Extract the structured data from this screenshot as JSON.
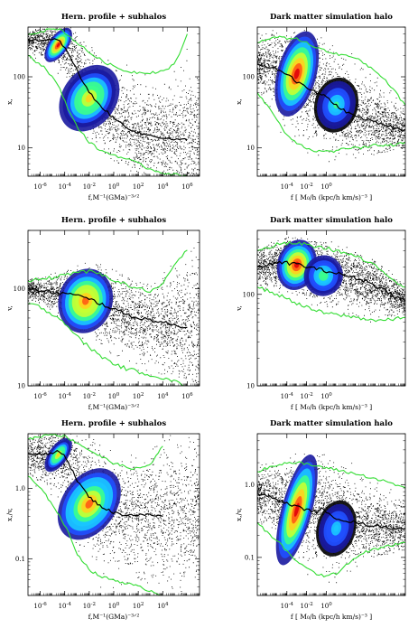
{
  "colors": {
    "envelope": "#33dd33",
    "median": "#000000",
    "density_scale": [
      "#000000",
      "#1a1aa0",
      "#2050ff",
      "#19c8ff",
      "#3cff8c",
      "#c8ff32",
      "#ffd21e",
      "#ff5a14",
      "#e1000a"
    ]
  },
  "chart_data": [
    {
      "type": "scatter",
      "title": "Hern. profile + subhalos",
      "xlabel": "f,M⁻¹(GMa)⁻³ᐟ²",
      "ylabel": "x,",
      "xscale": "log",
      "yscale": "log",
      "xlim": [
        1e-07,
        10000000.0
      ],
      "ylim": [
        4,
        500
      ],
      "xticks": [
        {
          "v": 1e-06,
          "e": "-6"
        },
        {
          "v": 0.0001,
          "e": "-4"
        },
        {
          "v": 0.01,
          "e": "-2"
        },
        {
          "v": 1,
          "e": "0"
        },
        {
          "v": 100,
          "e": "2"
        },
        {
          "v": 10000.0,
          "e": "4"
        },
        {
          "v": 1000000.0,
          "e": "6"
        }
      ],
      "yticks": [
        {
          "v": 10,
          "label": "10"
        },
        {
          "v": 100,
          "label": "100"
        }
      ],
      "median_line": {
        "x": [
          1e-07,
          3e-06,
          1e-05,
          3e-05,
          0.0001,
          0.0003,
          0.001,
          0.003,
          0.01,
          0.1,
          1,
          10,
          100,
          1000,
          10000.0,
          100000.0,
          1000000.0
        ],
        "y": [
          340,
          320,
          330,
          330,
          260,
          180,
          125,
          85,
          60,
          38,
          26,
          20,
          16,
          15,
          14,
          13,
          13
        ]
      },
      "envelope_upper": {
        "x": [
          1e-07,
          3e-06,
          3e-05,
          0.0001,
          0.0003,
          0.001,
          0.01,
          0.1,
          1,
          10,
          100,
          1000,
          10000.0,
          100000.0,
          1000000.0
        ],
        "y": [
          400,
          450,
          480,
          420,
          360,
          300,
          220,
          170,
          140,
          120,
          115,
          115,
          120,
          150,
          400
        ]
      },
      "envelope_lower": {
        "x": [
          1e-07,
          3e-06,
          3e-05,
          0.0001,
          0.001,
          0.01,
          0.1,
          1,
          10,
          100,
          1000,
          10000.0,
          100000.0,
          1000000.0
        ],
        "y": [
          200,
          130,
          75,
          45,
          20,
          12,
          9,
          8,
          7,
          6,
          5,
          4.5,
          4.2,
          4
        ]
      },
      "density_peaks": [
        {
          "x": 3e-05,
          "y": 280,
          "w": 0.35,
          "h": 0.1,
          "level": 0.95
        },
        {
          "x": 0.01,
          "y": 50,
          "w": 1.0,
          "h": 0.18,
          "level": 0.7
        }
      ]
    },
    {
      "type": "scatter",
      "title": "Dark matter simulation halo",
      "xlabel": "f [ M₀/h (kpc/h km/s)⁻³ ]",
      "ylabel": "x,",
      "xscale": "log",
      "yscale": "log",
      "xlim": [
        1e-07,
        100000000.0
      ],
      "ylim": [
        4,
        500
      ],
      "xticks": [
        {
          "v": 0.0001,
          "e": "-4"
        },
        {
          "v": 0.01,
          "e": "-2"
        },
        {
          "v": 1,
          "e": "0"
        }
      ],
      "yticks": [
        {
          "v": 10,
          "label": "10"
        },
        {
          "v": 100,
          "label": "100"
        }
      ],
      "median_line": {
        "x": [
          1e-07,
          1e-06,
          1e-05,
          0.0001,
          0.001,
          0.01,
          0.1,
          1,
          10,
          100,
          1000,
          10000.0,
          100000.0,
          1000000.0,
          10000000.0,
          100000000.0
        ],
        "y": [
          150,
          140,
          130,
          110,
          85,
          70,
          60,
          52,
          40,
          32,
          28,
          25,
          23,
          21,
          19,
          18
        ]
      },
      "envelope_upper": {
        "x": [
          1e-07,
          1e-06,
          1e-05,
          0.0001,
          0.001,
          0.01,
          0.1,
          1,
          10,
          100,
          1000,
          10000.0,
          100000.0,
          1000000.0,
          10000000.0,
          100000000.0
        ],
        "y": [
          300,
          350,
          360,
          350,
          340,
          300,
          260,
          230,
          210,
          200,
          180,
          150,
          120,
          90,
          60,
          40
        ]
      },
      "envelope_lower": {
        "x": [
          1e-07,
          1e-06,
          1e-05,
          0.0001,
          0.001,
          0.01,
          0.1,
          1,
          10,
          100,
          1000,
          10000.0,
          100000.0,
          1000000.0,
          10000000.0,
          100000000.0
        ],
        "y": [
          60,
          40,
          25,
          15,
          12,
          10,
          9,
          9,
          9,
          10,
          10,
          10,
          11,
          11,
          11,
          12
        ]
      },
      "density_peaks": [
        {
          "x": 0.001,
          "y": 110,
          "w": 0.9,
          "h": 0.22,
          "level": 1.0
        },
        {
          "x": 10,
          "y": 40,
          "w": 1.0,
          "h": 0.14,
          "level": 0.45
        }
      ]
    },
    {
      "type": "scatter",
      "title": "Hern. profile + subhalos",
      "xlabel": "f,M⁻¹(GMa)⁻³ᐟ²",
      "ylabel": "v,",
      "xscale": "log",
      "yscale": "log",
      "xlim": [
        1e-07,
        10000000.0
      ],
      "ylim": [
        10,
        400
      ],
      "xticks": [
        {
          "v": 1e-06,
          "e": "-6"
        },
        {
          "v": 0.0001,
          "e": "-4"
        },
        {
          "v": 0.01,
          "e": "-2"
        },
        {
          "v": 1,
          "e": "0"
        },
        {
          "v": 100,
          "e": "2"
        },
        {
          "v": 10000.0,
          "e": "4"
        },
        {
          "v": 1000000.0,
          "e": "6"
        }
      ],
      "yticks": [
        {
          "v": 10,
          "label": "10"
        },
        {
          "v": 100,
          "label": "100"
        }
      ],
      "median_line": {
        "x": [
          1e-07,
          1e-06,
          1e-05,
          0.0001,
          0.001,
          0.01,
          0.1,
          1,
          10,
          100,
          1000,
          10000.0,
          100000.0,
          1000000.0
        ],
        "y": [
          100,
          95,
          92,
          90,
          85,
          78,
          70,
          62,
          55,
          50,
          48,
          45,
          42,
          40
        ]
      },
      "envelope_upper": {
        "x": [
          1e-07,
          1e-06,
          1e-05,
          0.0001,
          0.001,
          0.01,
          0.1,
          1,
          10,
          100,
          1000,
          10000.0,
          100000.0,
          1000000.0
        ],
        "y": [
          120,
          125,
          130,
          140,
          150,
          150,
          140,
          125,
          110,
          100,
          95,
          110,
          180,
          250
        ]
      },
      "envelope_lower": {
        "x": [
          1e-07,
          1e-06,
          1e-05,
          0.0001,
          0.001,
          0.01,
          0.1,
          1,
          10,
          100,
          1000,
          10000.0,
          100000.0,
          1000000.0
        ],
        "y": [
          70,
          65,
          55,
          45,
          32,
          25,
          20,
          17,
          15,
          14,
          13,
          12,
          11,
          10
        ]
      },
      "density_peaks": [
        {
          "x": 0.005,
          "y": 75,
          "w": 1.0,
          "h": 0.12,
          "level": 0.9
        }
      ]
    },
    {
      "type": "scatter",
      "title": "Dark matter simulation halo",
      "xlabel": "f [ M₀/h (kpc/h km/s)⁻³ ]",
      "ylabel": "v,",
      "xscale": "log",
      "yscale": "log",
      "xlim": [
        1e-07,
        100000000.0
      ],
      "ylim": [
        10,
        500
      ],
      "xticks": [
        {
          "v": 0.0001,
          "e": "-4"
        },
        {
          "v": 0.01,
          "e": "-2"
        },
        {
          "v": 1,
          "e": "0"
        }
      ],
      "yticks": [
        {
          "v": 10,
          "label": "10"
        },
        {
          "v": 100,
          "label": "100"
        }
      ],
      "median_line": {
        "x": [
          1e-07,
          1e-06,
          1e-05,
          0.0001,
          0.001,
          0.01,
          0.1,
          1,
          10,
          100,
          1000,
          10000.0,
          100000.0,
          1000000.0,
          10000000.0,
          100000000.0
        ],
        "y": [
          200,
          210,
          220,
          220,
          215,
          200,
          190,
          180,
          170,
          160,
          150,
          140,
          125,
          110,
          95,
          85
        ]
      },
      "envelope_upper": {
        "x": [
          1e-07,
          1e-06,
          1e-05,
          0.0001,
          0.001,
          0.01,
          0.1,
          1,
          10,
          100,
          1000,
          10000.0,
          100000.0,
          1000000.0,
          10000000.0,
          100000000.0
        ],
        "y": [
          300,
          320,
          350,
          360,
          360,
          350,
          330,
          320,
          300,
          280,
          260,
          230,
          200,
          170,
          140,
          120
        ]
      },
      "envelope_lower": {
        "x": [
          1e-07,
          1e-06,
          1e-05,
          0.0001,
          0.001,
          0.01,
          0.1,
          1,
          10,
          100,
          1000,
          10000.0,
          100000.0,
          1000000.0,
          10000000.0,
          100000000.0
        ],
        "y": [
          120,
          110,
          100,
          90,
          80,
          72,
          66,
          62,
          60,
          58,
          56,
          54,
          52,
          52,
          54,
          56
        ]
      },
      "density_peaks": [
        {
          "x": 0.001,
          "y": 210,
          "w": 0.9,
          "h": 0.1,
          "level": 1.0
        },
        {
          "x": 0.5,
          "y": 160,
          "w": 0.9,
          "h": 0.08,
          "level": 0.5
        }
      ]
    },
    {
      "type": "scatter",
      "title": "Hern. profile + subhalos",
      "xlabel": "f,M⁻¹(GMa)⁻³ᐟ²",
      "ylabel": "x,/v,",
      "xscale": "log",
      "yscale": "log",
      "xlim": [
        1e-07,
        10000000.0
      ],
      "ylim": [
        0.03,
        6
      ],
      "xticks": [
        {
          "v": 1e-06,
          "e": "-6"
        },
        {
          "v": 0.0001,
          "e": "-4"
        },
        {
          "v": 0.01,
          "e": "-2"
        },
        {
          "v": 1,
          "e": "0"
        },
        {
          "v": 100,
          "e": "2"
        },
        {
          "v": 10000.0,
          "e": "4"
        }
      ],
      "yticks": [
        {
          "v": 0.1,
          "label": "0.1"
        },
        {
          "v": 1,
          "label": "1.0"
        }
      ],
      "median_line": {
        "x": [
          1e-07,
          1e-06,
          1e-05,
          3e-05,
          0.0001,
          0.0003,
          0.001,
          0.01,
          0.1,
          1,
          10,
          100,
          1000,
          10000.0
        ],
        "y": [
          3.2,
          3.0,
          3.1,
          3.5,
          3.0,
          2.0,
          1.3,
          0.75,
          0.55,
          0.45,
          0.42,
          0.42,
          0.42,
          0.4
        ]
      },
      "envelope_upper": {
        "x": [
          1e-07,
          1e-06,
          1e-05,
          0.0001,
          0.001,
          0.01,
          0.1,
          1,
          10,
          100,
          1000,
          10000.0
        ],
        "y": [
          5,
          5.5,
          6,
          5.5,
          4.5,
          3.5,
          2.8,
          2.3,
          2.0,
          1.9,
          2.2,
          4
        ]
      },
      "envelope_lower": {
        "x": [
          1e-07,
          1e-06,
          1e-05,
          0.0001,
          0.001,
          0.01,
          0.1,
          1,
          10,
          100,
          1000,
          10000.0
        ],
        "y": [
          1.5,
          1.0,
          0.6,
          0.3,
          0.12,
          0.07,
          0.055,
          0.05,
          0.045,
          0.04,
          0.035,
          0.03
        ]
      },
      "density_peaks": [
        {
          "x": 3e-05,
          "y": 3.0,
          "w": 0.35,
          "h": 0.1,
          "level": 0.7
        },
        {
          "x": 0.01,
          "y": 0.6,
          "w": 1.0,
          "h": 0.2,
          "level": 0.85
        }
      ]
    },
    {
      "type": "scatter",
      "title": "Dark matter simulation halo",
      "xlabel": "f [ M₀/h (kpc/h km/s)⁻³ ]",
      "ylabel": "x,/v,",
      "xscale": "log",
      "yscale": "log",
      "xlim": [
        1e-07,
        100000000.0
      ],
      "ylim": [
        0.03,
        5
      ],
      "xticks": [
        {
          "v": 0.0001,
          "e": "-4"
        },
        {
          "v": 0.01,
          "e": "-2"
        },
        {
          "v": 1,
          "e": "0"
        }
      ],
      "yticks": [
        {
          "v": 0.1,
          "label": "0.1"
        },
        {
          "v": 1,
          "label": "1.0"
        }
      ],
      "median_line": {
        "x": [
          1e-07,
          1e-06,
          1e-05,
          0.0001,
          0.001,
          0.01,
          0.1,
          0.3,
          1,
          10,
          100,
          1000,
          10000.0,
          100000.0,
          1000000.0,
          10000000.0,
          100000000.0
        ],
        "y": [
          0.75,
          0.7,
          0.62,
          0.55,
          0.5,
          0.45,
          0.42,
          0.48,
          0.4,
          0.35,
          0.32,
          0.3,
          0.28,
          0.27,
          0.26,
          0.25,
          0.25
        ]
      },
      "envelope_upper": {
        "x": [
          1e-07,
          1e-06,
          1e-05,
          0.0001,
          0.001,
          0.01,
          0.1,
          1,
          10,
          100,
          1000,
          10000.0,
          100000.0,
          1000000.0,
          10000000.0,
          100000000.0
        ],
        "y": [
          1.5,
          1.7,
          1.9,
          2.0,
          2.0,
          1.9,
          1.8,
          1.7,
          1.6,
          1.5,
          1.4,
          1.3,
          1.2,
          1.1,
          1.0,
          0.9
        ]
      },
      "envelope_lower": {
        "x": [
          1e-07,
          1e-06,
          1e-05,
          0.0001,
          0.001,
          0.01,
          0.1,
          1,
          10,
          100,
          1000,
          10000.0,
          100000.0,
          1000000.0,
          10000000.0,
          100000000.0
        ],
        "y": [
          0.3,
          0.22,
          0.17,
          0.12,
          0.09,
          0.07,
          0.06,
          0.055,
          0.06,
          0.08,
          0.1,
          0.12,
          0.13,
          0.14,
          0.15,
          0.16
        ]
      },
      "density_peaks": [
        {
          "x": 0.001,
          "y": 0.45,
          "w": 0.7,
          "h": 0.28,
          "level": 1.0
        },
        {
          "x": 10,
          "y": 0.25,
          "w": 0.9,
          "h": 0.14,
          "level": 0.4
        }
      ]
    }
  ]
}
